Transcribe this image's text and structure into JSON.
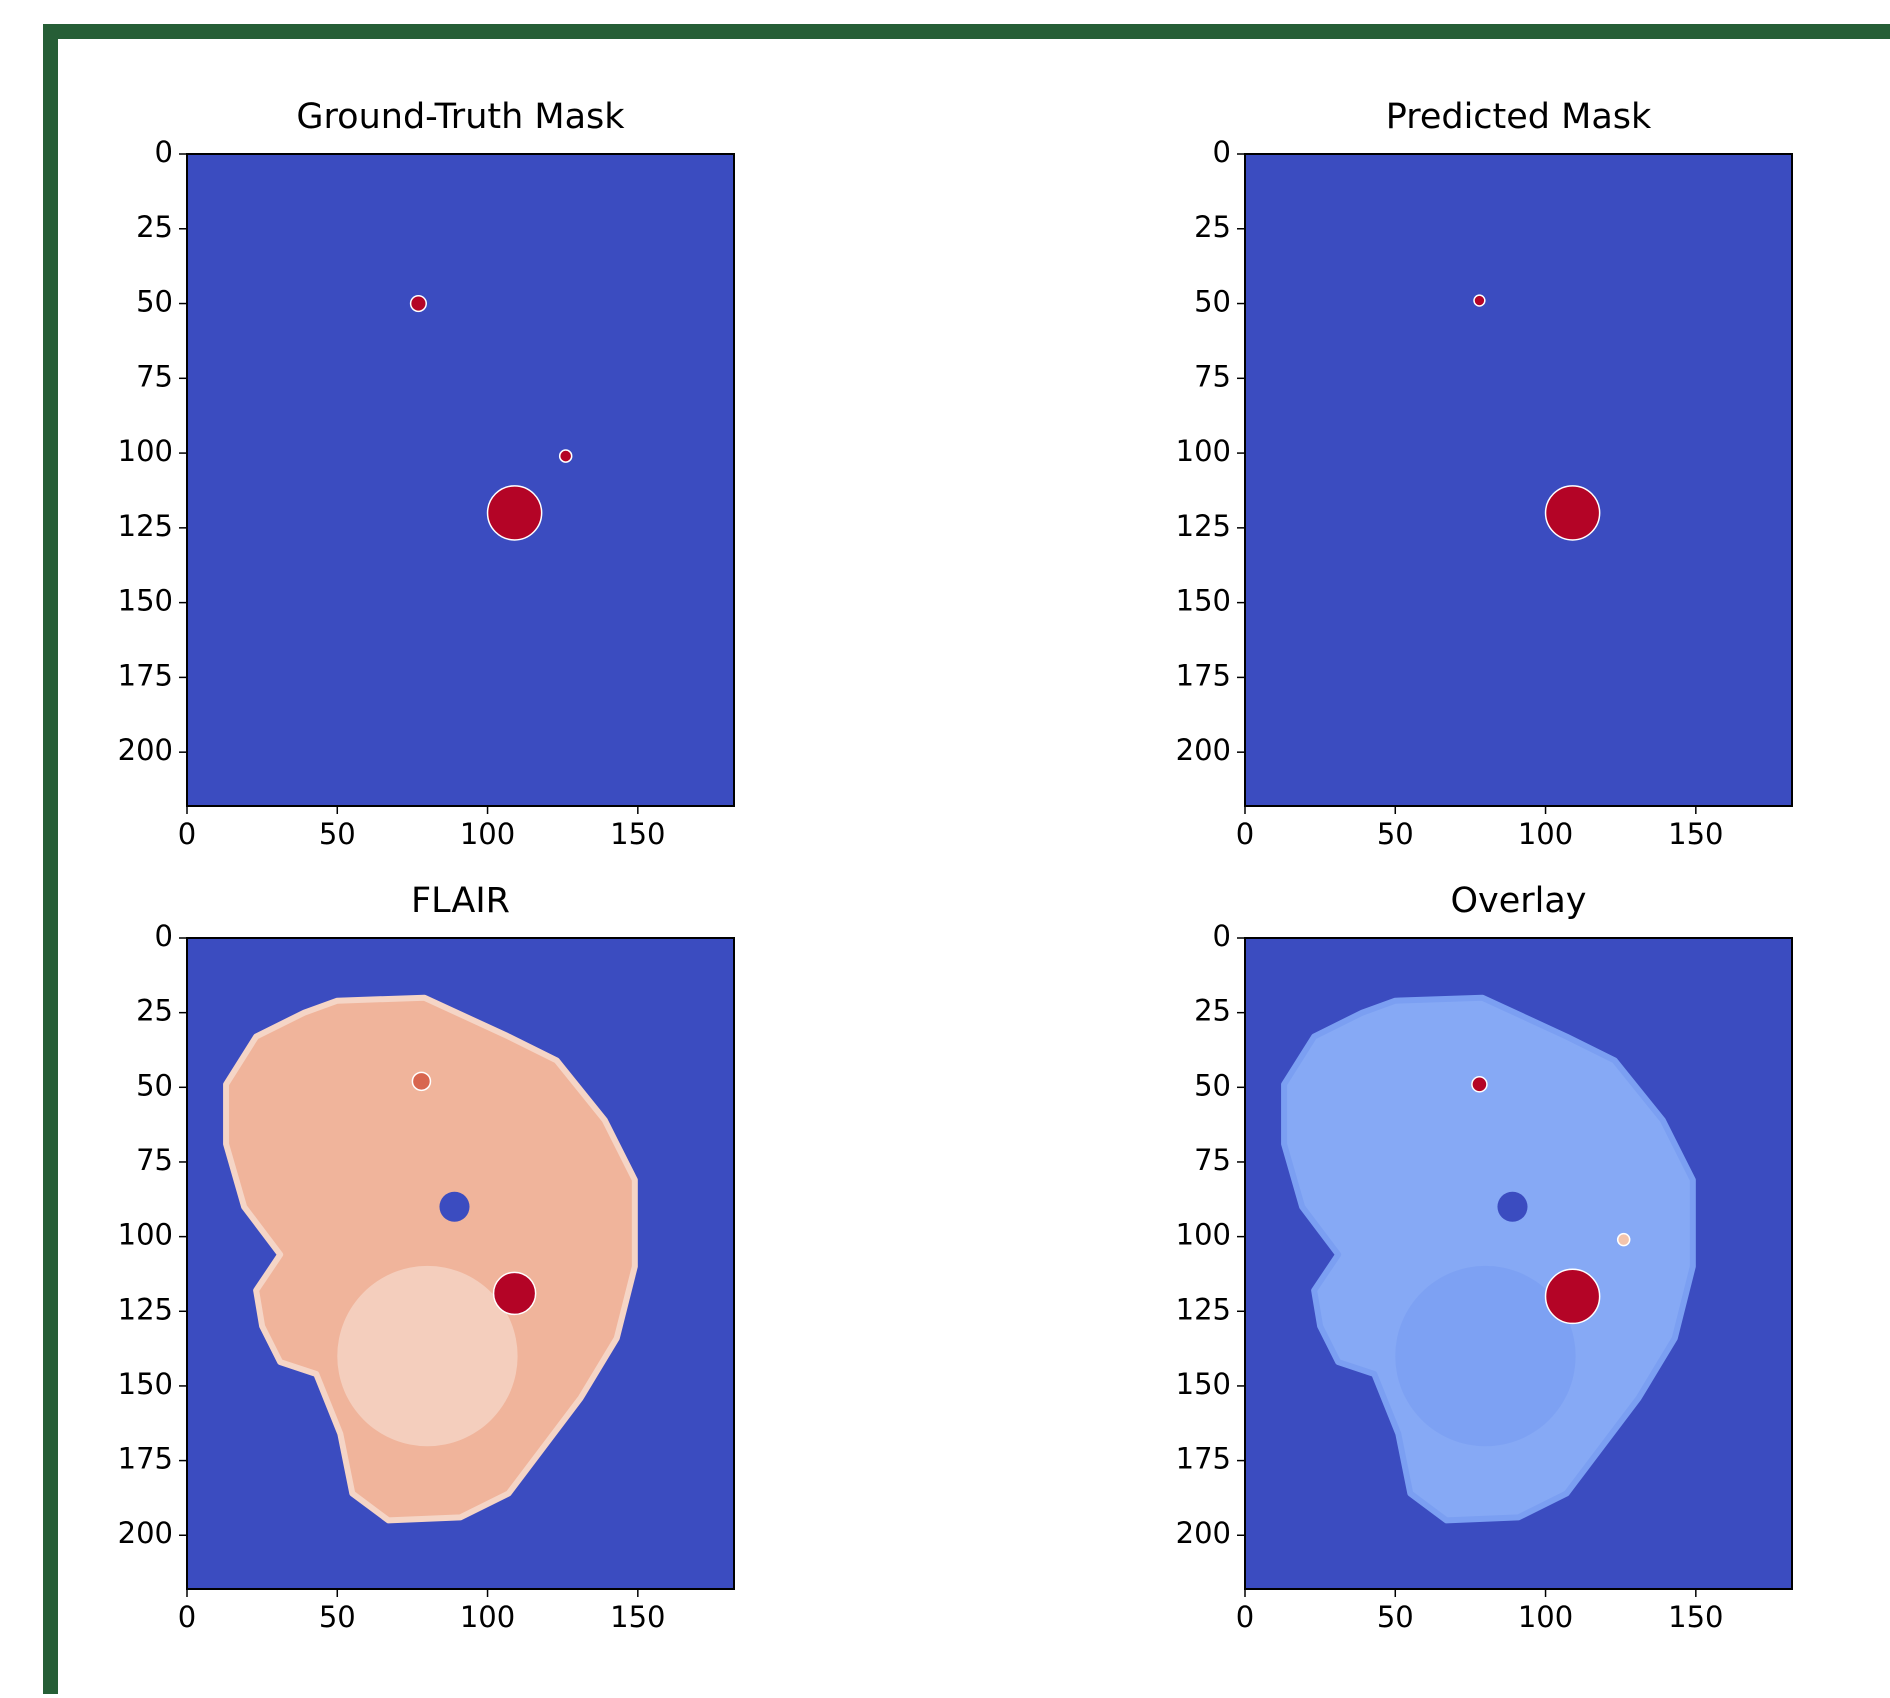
{
  "chart_data": [
    {
      "type": "image",
      "title": "Ground-Truth Mask",
      "xlim": [
        0,
        182
      ],
      "ylim": [
        218,
        0
      ],
      "xticks": [
        0,
        50,
        100,
        150
      ],
      "yticks": [
        0,
        25,
        50,
        75,
        100,
        125,
        150,
        175,
        200
      ]
    },
    {
      "type": "image",
      "title": "Predicted Mask",
      "xlim": [
        0,
        182
      ],
      "ylim": [
        218,
        0
      ],
      "xticks": [
        0,
        50,
        100,
        150
      ],
      "yticks": [
        0,
        25,
        50,
        75,
        100,
        125,
        150,
        175,
        200
      ]
    },
    {
      "type": "image",
      "title": "FLAIR",
      "xlim": [
        0,
        182
      ],
      "ylim": [
        218,
        0
      ],
      "xticks": [
        0,
        50,
        100,
        150
      ],
      "yticks": [
        0,
        25,
        50,
        75,
        100,
        125,
        150,
        175,
        200
      ]
    },
    {
      "type": "image",
      "title": "Overlay",
      "xlim": [
        0,
        182
      ],
      "ylim": [
        218,
        0
      ],
      "xticks": [
        0,
        50,
        100,
        150
      ],
      "yticks": [
        0,
        25,
        50,
        75,
        100,
        125,
        150,
        175,
        200
      ]
    }
  ]
}
